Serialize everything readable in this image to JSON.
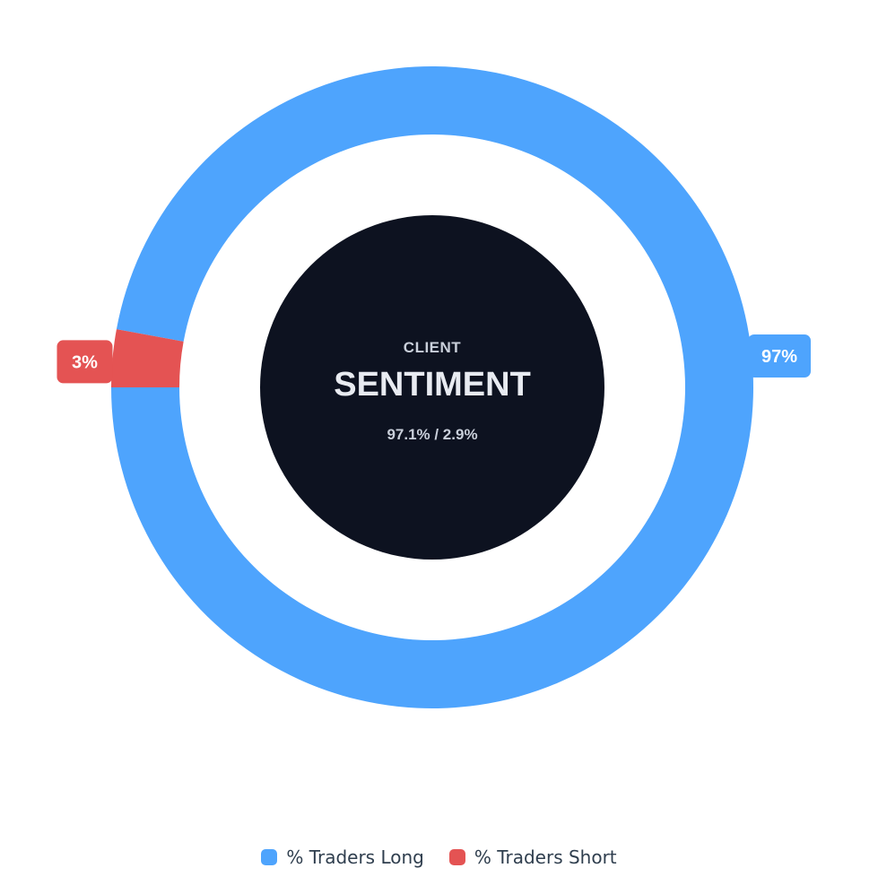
{
  "chart_data": {
    "type": "pie",
    "variant": "donut",
    "series": [
      {
        "name": "% Traders Long",
        "value": 97.1,
        "color": "#4ea4fd",
        "label": "97%"
      },
      {
        "name": "% Traders Short",
        "value": 2.9,
        "color": "#e45353",
        "label": "3%"
      }
    ],
    "center": {
      "line1": "CLIENT",
      "line2": "SENTIMENT",
      "line3": "97.1% / 2.9%",
      "background": "#0d1220"
    },
    "legend": {
      "position": "bottom-center"
    }
  }
}
